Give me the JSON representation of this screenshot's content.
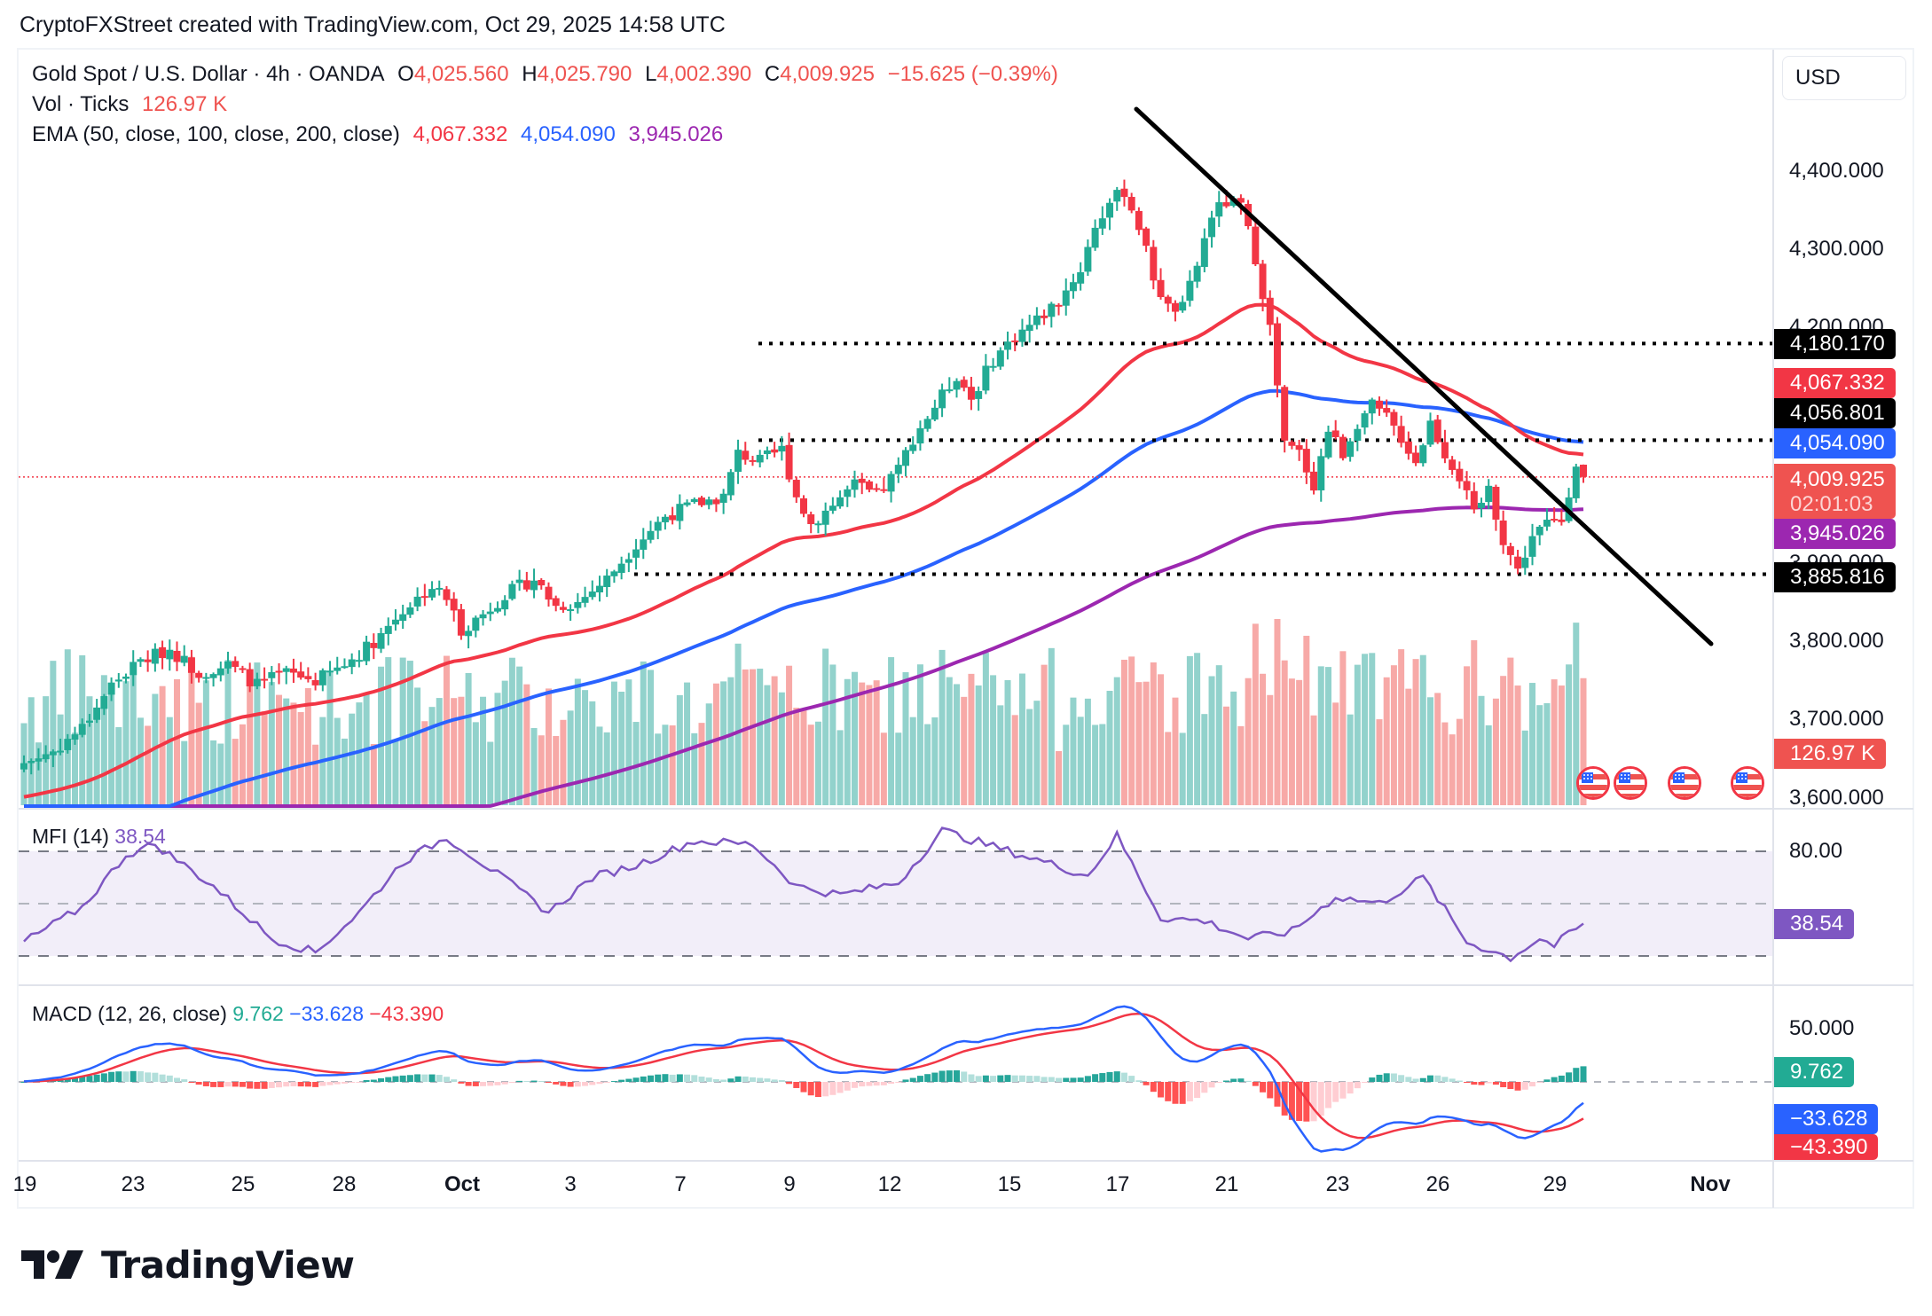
{
  "credit": "CryptoFXStreet created with TradingView.com, Oct 29, 2025 14:58 UTC",
  "legend": {
    "symbol": "Gold Spot / U.S. Dollar · 4h · OANDA",
    "o_label": "O",
    "o": "4,025.560",
    "h_label": "H",
    "h": "4,025.790",
    "l_label": "L",
    "l": "4,002.390",
    "c_label": "C",
    "c": "4,009.925",
    "change": "−15.625 (−0.39%)",
    "vol_label": "Vol · Ticks",
    "vol": "126.97 K",
    "ema_label": "EMA (50, close, 100, close, 200, close)",
    "ema50": "4,067.332",
    "ema100": "4,054.090",
    "ema200": "3,945.026"
  },
  "currency_button": "USD",
  "price_axis": {
    "ticks": [
      "4,400.000",
      "4,300.000",
      "4,200.000",
      "3,900.000",
      "3,800.000",
      "3,700.000",
      "3,600.000"
    ],
    "tags": {
      "level_high": "4,180.170",
      "ema50": "4,067.332",
      "level_mid": "4,056.801",
      "ema100": "4,054.090",
      "last": "4,009.925",
      "countdown": "02:01:03",
      "ema200": "3,945.026",
      "level_low": "3,885.816",
      "volume": "126.97 K"
    }
  },
  "mfi": {
    "label": "MFI (14)",
    "value": "38.54",
    "axis": [
      "80.00"
    ],
    "tag": "38.54"
  },
  "macd": {
    "label": "MACD (12, 26, close)",
    "hist": "9.762",
    "macd": "−33.628",
    "signal": "−43.390",
    "axis": [
      "50.000",
      "0.000"
    ],
    "tags": [
      "9.762",
      "−33.628",
      "−43.390"
    ]
  },
  "time_axis": [
    {
      "label": "19",
      "bold": false
    },
    {
      "label": "23",
      "bold": false
    },
    {
      "label": "25",
      "bold": false
    },
    {
      "label": "28",
      "bold": false
    },
    {
      "label": "Oct",
      "bold": true
    },
    {
      "label": "3",
      "bold": false
    },
    {
      "label": "7",
      "bold": false
    },
    {
      "label": "9",
      "bold": false
    },
    {
      "label": "12",
      "bold": false
    },
    {
      "label": "15",
      "bold": false
    },
    {
      "label": "17",
      "bold": false
    },
    {
      "label": "21",
      "bold": false
    },
    {
      "label": "23",
      "bold": false
    },
    {
      "label": "26",
      "bold": false
    },
    {
      "label": "29",
      "bold": false
    },
    {
      "label": "Nov",
      "bold": true
    }
  ],
  "logo": "TradingView",
  "colors": {
    "up": "#22ab94",
    "down": "#f23645",
    "ema50": "#f23645",
    "ema100": "#2962ff",
    "ema200": "#9c27b0",
    "mfi": "#7e57c2",
    "vol_up": "#92d2cc",
    "vol_down": "#f7a9a7"
  },
  "chart_data": {
    "type": "candlestick",
    "title": "Gold Spot / U.S. Dollar · 4h · OANDA",
    "ylabel": "USD",
    "ylim": [
      3600,
      4450
    ],
    "x_range": [
      "Sep 19",
      "Nov 1"
    ],
    "horizontal_levels": [
      4180.17,
      4056.801,
      3885.816
    ],
    "trendline": {
      "from": {
        "date": "Oct 17",
        "price": 4470
      },
      "to": {
        "date": "Oct 31",
        "price": 3795
      }
    },
    "close_waypoints": [
      [
        0,
        3645
      ],
      [
        4,
        3660
      ],
      [
        8,
        3690
      ],
      [
        12,
        3745
      ],
      [
        16,
        3775
      ],
      [
        20,
        3790
      ],
      [
        24,
        3760
      ],
      [
        28,
        3770
      ],
      [
        32,
        3745
      ],
      [
        36,
        3760
      ],
      [
        40,
        3750
      ],
      [
        44,
        3770
      ],
      [
        48,
        3800
      ],
      [
        52,
        3840
      ],
      [
        56,
        3870
      ],
      [
        58,
        3855
      ],
      [
        60,
        3815
      ],
      [
        63,
        3835
      ],
      [
        66,
        3860
      ],
      [
        70,
        3880
      ],
      [
        73,
        3845
      ],
      [
        76,
        3850
      ],
      [
        80,
        3880
      ],
      [
        84,
        3925
      ],
      [
        88,
        3960
      ],
      [
        92,
        3975
      ],
      [
        96,
        3985
      ],
      [
        98,
        4040
      ],
      [
        101,
        4030
      ],
      [
        104,
        4045
      ],
      [
        106,
        3985
      ],
      [
        108,
        3950
      ],
      [
        111,
        3975
      ],
      [
        114,
        4000
      ],
      [
        117,
        3985
      ],
      [
        120,
        4020
      ],
      [
        122,
        4060
      ],
      [
        125,
        4100
      ],
      [
        128,
        4140
      ],
      [
        130,
        4110
      ],
      [
        133,
        4160
      ],
      [
        136,
        4190
      ],
      [
        139,
        4210
      ],
      [
        142,
        4235
      ],
      [
        145,
        4275
      ],
      [
        147,
        4330
      ],
      [
        149,
        4360
      ],
      [
        151,
        4375
      ],
      [
        153,
        4330
      ],
      [
        155,
        4265
      ],
      [
        157,
        4225
      ],
      [
        159,
        4225
      ],
      [
        161,
        4280
      ],
      [
        163,
        4345
      ],
      [
        165,
        4360
      ],
      [
        167,
        4355
      ],
      [
        169,
        4290
      ],
      [
        171,
        4200
      ],
      [
        173,
        4050
      ],
      [
        175,
        4040
      ],
      [
        177,
        4000
      ],
      [
        179,
        4070
      ],
      [
        181,
        4040
      ],
      [
        183,
        4080
      ],
      [
        185,
        4100
      ],
      [
        187,
        4085
      ],
      [
        189,
        4060
      ],
      [
        191,
        4030
      ],
      [
        193,
        4080
      ],
      [
        195,
        4040
      ],
      [
        197,
        4010
      ],
      [
        199,
        3960
      ],
      [
        201,
        3995
      ],
      [
        203,
        3930
      ],
      [
        205,
        3890
      ],
      [
        207,
        3935
      ],
      [
        209,
        3950
      ],
      [
        211,
        3955
      ],
      [
        213,
        4030
      ],
      [
        214,
        4009.925
      ]
    ],
    "last": {
      "open": 4025.56,
      "high": 4025.79,
      "low": 4002.39,
      "close": 4009.925,
      "volume_k": 126.97
    },
    "ema": {
      "ema50": 4067.332,
      "ema100": 4054.09,
      "ema200": 3945.026
    },
    "mfi": {
      "value": 38.54,
      "upper": 80,
      "middle": 50,
      "lower": 20
    },
    "macd": {
      "histogram": 9.762,
      "macd": -33.628,
      "signal": -43.39
    },
    "events_icon": "us-flag-icon",
    "events_count": 4
  }
}
